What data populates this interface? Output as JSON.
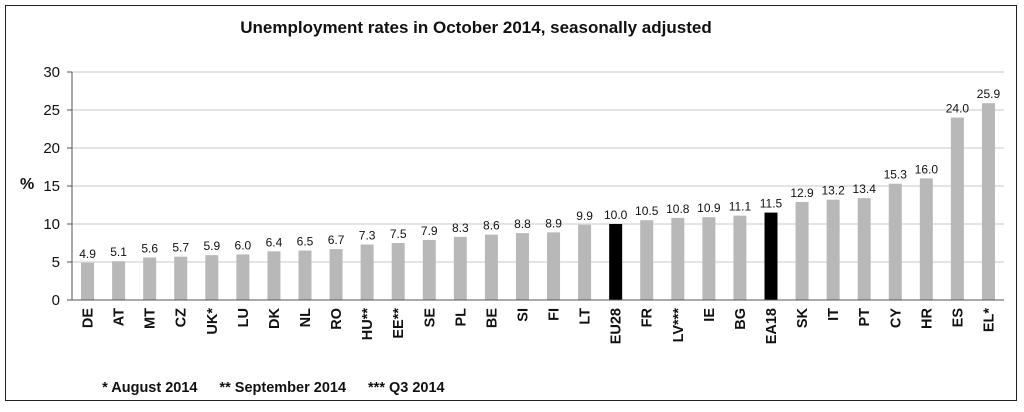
{
  "chart_data": {
    "type": "bar",
    "title": "Unemployment rates in October 2014, seasonally adjusted",
    "ylabel": "%",
    "xlabel": "",
    "ylim": [
      0,
      30
    ],
    "yticks": [
      0,
      5,
      10,
      15,
      20,
      25,
      30
    ],
    "grid": true,
    "categories": [
      "DE",
      "AT",
      "MT",
      "CZ",
      "UK*",
      "LU",
      "DK",
      "NL",
      "RO",
      "HU**",
      "EE**",
      "SE",
      "PL",
      "BE",
      "SI",
      "FI",
      "LT",
      "EU28",
      "FR",
      "LV***",
      "IE",
      "BG",
      "EA18",
      "SK",
      "IT",
      "PT",
      "CY",
      "HR",
      "ES",
      "EL*"
    ],
    "values": [
      4.9,
      5.1,
      5.6,
      5.7,
      5.9,
      6.0,
      6.4,
      6.5,
      6.7,
      7.3,
      7.5,
      7.9,
      8.3,
      8.6,
      8.8,
      8.9,
      9.9,
      10.0,
      10.5,
      10.8,
      10.9,
      11.1,
      11.5,
      12.9,
      13.2,
      13.4,
      15.3,
      16.0,
      24.0,
      25.9
    ],
    "value_labels": [
      "4.9",
      "5.1",
      "5.6",
      "5.7",
      "5.9",
      "6.0",
      "6.4",
      "6.5",
      "6.7",
      "7.3",
      "7.5",
      "7.9",
      "8.3",
      "8.6",
      "8.8",
      "8.9",
      "9.9",
      "10.0",
      "10.5",
      "10.8",
      "10.9",
      "11.1",
      "11.5",
      "12.9",
      "13.2",
      "13.4",
      "15.3",
      "16.0",
      "24.0",
      "25.9"
    ],
    "highlighted": [
      "EU28",
      "EA18"
    ],
    "colors": {
      "bar": "#b8b8b8",
      "highlight": "#000000",
      "grid": "#c8c8c8",
      "axis": "#555555"
    }
  },
  "footnotes": [
    "* August 2014",
    "** September 2014",
    "*** Q3 2014"
  ]
}
